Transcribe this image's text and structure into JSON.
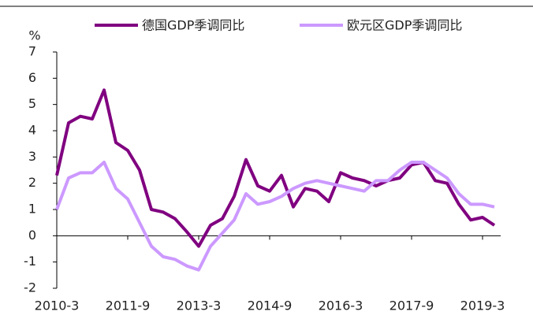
{
  "chart_data": {
    "type": "line",
    "y_label": "%",
    "categories": [
      "2010-3",
      null,
      null,
      null,
      null,
      null,
      "2011-9",
      null,
      null,
      null,
      null,
      null,
      "2013-3",
      null,
      null,
      null,
      null,
      null,
      "2014-9",
      null,
      null,
      null,
      null,
      null,
      "2016-3",
      null,
      null,
      null,
      null,
      null,
      "2017-9",
      null,
      null,
      null,
      null,
      null,
      "2019-3",
      null
    ],
    "series": [
      {
        "name": "德国GDP季调同比",
        "color": "#800080",
        "values": [
          2.3,
          4.3,
          4.55,
          4.45,
          5.55,
          3.55,
          3.25,
          2.5,
          1.0,
          0.9,
          0.65,
          0.15,
          -0.4,
          0.4,
          0.65,
          1.5,
          2.9,
          1.9,
          1.7,
          2.3,
          1.1,
          1.8,
          1.7,
          1.3,
          2.4,
          2.2,
          2.1,
          1.9,
          2.1,
          2.2,
          2.7,
          2.8,
          2.1,
          2.0,
          1.2,
          0.6,
          0.7,
          0.4
        ]
      },
      {
        "name": "欧元区GDP季调同比",
        "color": "#cc99ff",
        "values": [
          1.0,
          2.2,
          2.4,
          2.4,
          2.8,
          1.8,
          1.4,
          0.5,
          -0.4,
          -0.8,
          -0.9,
          -1.15,
          -1.3,
          -0.4,
          0.1,
          0.6,
          1.6,
          1.2,
          1.3,
          1.5,
          1.8,
          2.0,
          2.1,
          2.0,
          1.9,
          1.8,
          1.7,
          2.1,
          2.1,
          2.5,
          2.8,
          2.8,
          2.5,
          2.2,
          1.6,
          1.2,
          1.2,
          1.1
        ]
      }
    ],
    "ylim": [
      -2,
      7
    ],
    "yticks": [
      -2,
      -1,
      0,
      1,
      2,
      3,
      4,
      5,
      6,
      7
    ]
  }
}
